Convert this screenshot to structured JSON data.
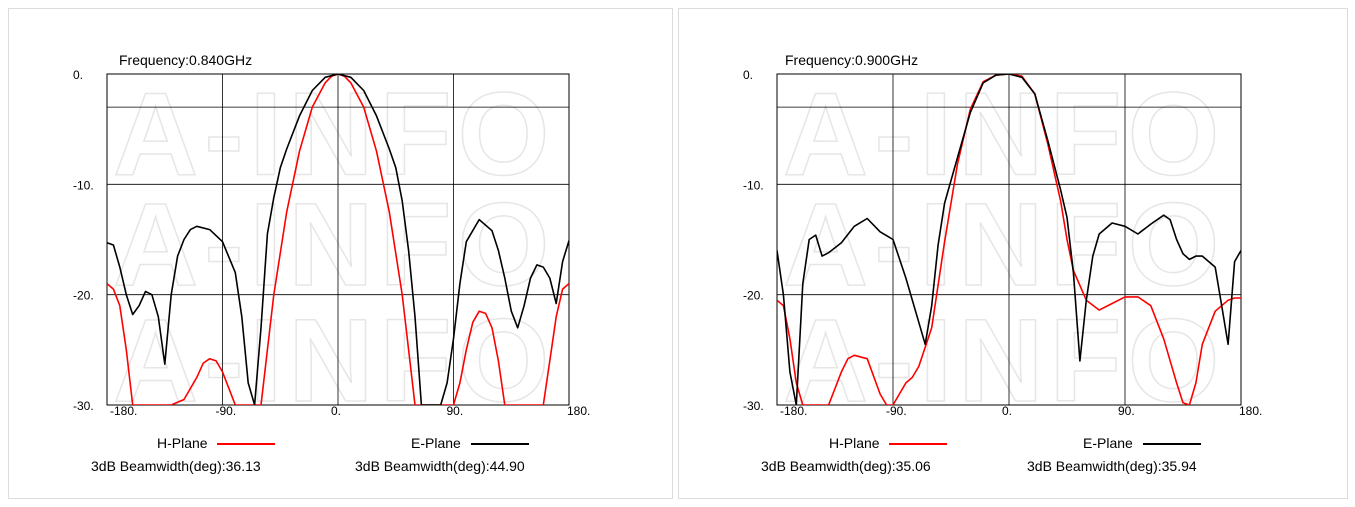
{
  "watermark": "A-INFO",
  "chart_data": [
    {
      "type": "line",
      "title": "Frequency:0.840GHz",
      "xlim": [
        -180,
        180
      ],
      "ylim": [
        -30,
        0
      ],
      "x_ticks": [
        "-180.",
        "-90.",
        "0.",
        "90.",
        "180."
      ],
      "y_ticks": [
        "0.",
        "-10.",
        "-20.",
        "-30."
      ],
      "reference_line_db": -3,
      "grid": true,
      "series": [
        {
          "name": "H-Plane",
          "color": "#ff0000",
          "beamwidth_label": "3dB Beamwidth(deg):36.13",
          "x": [
            -180,
            -175,
            -170,
            -165,
            -160,
            -150,
            -140,
            -130,
            -120,
            -110,
            -105,
            -100,
            -95,
            -90,
            -85,
            -80,
            -75,
            -70,
            -65,
            -60,
            -50,
            -40,
            -30,
            -20,
            -10,
            -5,
            0,
            5,
            10,
            20,
            30,
            40,
            50,
            55,
            60,
            65,
            70,
            75,
            80,
            85,
            90,
            95,
            100,
            105,
            110,
            115,
            120,
            125,
            130,
            140,
            150,
            160,
            165,
            170,
            175,
            180
          ],
          "y": [
            -19,
            -19.5,
            -21,
            -25,
            -30,
            -30,
            -30,
            -30,
            -29.5,
            -27.5,
            -26.2,
            -25.8,
            -26,
            -27,
            -28.5,
            -30,
            -30,
            -30,
            -30,
            -30,
            -20,
            -12.5,
            -7,
            -3,
            -0.8,
            -0.2,
            0,
            -0.2,
            -0.8,
            -3,
            -7,
            -12.5,
            -20,
            -25,
            -30,
            -30,
            -30,
            -30,
            -30,
            -30,
            -30,
            -28,
            -25,
            -22.5,
            -21.5,
            -21.7,
            -23,
            -26,
            -30,
            -30,
            -30,
            -30,
            -26,
            -22,
            -19.5,
            -19
          ]
        },
        {
          "name": "E-Plane",
          "color": "#000000",
          "beamwidth_label": "3dB Beamwidth(deg):44.90",
          "x": [
            -180,
            -175,
            -170,
            -165,
            -160,
            -155,
            -150,
            -145,
            -140,
            -135,
            -130,
            -125,
            -120,
            -115,
            -110,
            -100,
            -90,
            -80,
            -75,
            -70,
            -65,
            -60,
            -55,
            -50,
            -45,
            -40,
            -30,
            -20,
            -10,
            0,
            10,
            20,
            30,
            40,
            45,
            50,
            55,
            60,
            65,
            70,
            75,
            80,
            85,
            90,
            95,
            100,
            110,
            120,
            125,
            130,
            135,
            140,
            145,
            150,
            155,
            160,
            165,
            170,
            175,
            180
          ],
          "y": [
            -15.3,
            -15.5,
            -17.5,
            -20,
            -21.8,
            -21,
            -19.7,
            -20,
            -22,
            -26.3,
            -20,
            -16.5,
            -15,
            -14.1,
            -13.8,
            -14.1,
            -15.2,
            -18,
            -22,
            -28,
            -30,
            -23,
            -14.5,
            -11.2,
            -8.5,
            -6.8,
            -3.8,
            -1.5,
            -0.3,
            0,
            -0.3,
            -1.5,
            -3.8,
            -6.8,
            -8.5,
            -11.5,
            -16,
            -22,
            -30,
            -30,
            -30,
            -30,
            -28,
            -24,
            -19,
            -15.2,
            -13.2,
            -14.2,
            -16,
            -18.5,
            -21.5,
            -23,
            -21,
            -18.5,
            -17.3,
            -17.5,
            -18.5,
            -20.8,
            -17,
            -15.1
          ]
        }
      ]
    },
    {
      "type": "line",
      "title": "Frequency:0.900GHz",
      "xlim": [
        -180,
        180
      ],
      "ylim": [
        -30,
        0
      ],
      "x_ticks": [
        "-180.",
        "-90.",
        "0.",
        "90.",
        "180."
      ],
      "y_ticks": [
        "0.",
        "-10.",
        "-20.",
        "-30."
      ],
      "reference_line_db": -3,
      "grid": true,
      "series": [
        {
          "name": "H-Plane",
          "color": "#ff0000",
          "beamwidth_label": "3dB Beamwidth(deg):35.06",
          "x": [
            -180,
            -175,
            -170,
            -165,
            -160,
            -155,
            -150,
            -140,
            -130,
            -125,
            -120,
            -110,
            -100,
            -95,
            -90,
            -85,
            -80,
            -75,
            -70,
            -60,
            -50,
            -40,
            -30,
            -20,
            -10,
            0,
            10,
            20,
            30,
            40,
            45,
            50,
            60,
            70,
            80,
            90,
            100,
            110,
            120,
            130,
            135,
            140,
            145,
            150,
            160,
            170,
            175,
            180
          ],
          "y": [
            -20.5,
            -21,
            -24,
            -28,
            -30,
            -30,
            -30,
            -30,
            -27,
            -25.8,
            -25.5,
            -25.8,
            -29,
            -30,
            -30,
            -29,
            -28,
            -27.5,
            -26.5,
            -23,
            -15.2,
            -8.2,
            -3.2,
            -0.7,
            -0.1,
            0,
            -0.2,
            -1.8,
            -6.3,
            -11.5,
            -15,
            -17.8,
            -20.5,
            -21.4,
            -20.8,
            -20.2,
            -20.2,
            -21,
            -24,
            -28,
            -29.8,
            -30,
            -28,
            -24.5,
            -21.5,
            -20.5,
            -20.3,
            -20.3
          ]
        },
        {
          "name": "E-Plane",
          "color": "#000000",
          "beamwidth_label": "3dB Beamwidth(deg):35.94",
          "x": [
            -180,
            -175,
            -170,
            -165,
            -160,
            -155,
            -150,
            -145,
            -140,
            -130,
            -120,
            -110,
            -100,
            -90,
            -80,
            -70,
            -65,
            -60,
            -55,
            -50,
            -40,
            -30,
            -20,
            -10,
            0,
            10,
            20,
            30,
            40,
            45,
            50,
            55,
            60,
            65,
            70,
            80,
            90,
            100,
            110,
            120,
            125,
            130,
            135,
            140,
            145,
            150,
            160,
            165,
            170,
            175,
            180
          ],
          "y": [
            -16,
            -20,
            -27,
            -30,
            -19,
            -15,
            -14.6,
            -16.5,
            -16.2,
            -15.3,
            -13.8,
            -13.1,
            -14.3,
            -15,
            -18.5,
            -22.5,
            -24.5,
            -21,
            -15.5,
            -11.7,
            -7.6,
            -3.5,
            -0.8,
            -0.1,
            0,
            -0.3,
            -1.8,
            -6,
            -10.5,
            -13,
            -18,
            -26,
            -20.5,
            -16.5,
            -14.5,
            -13.5,
            -13.8,
            -14.5,
            -13.6,
            -12.8,
            -13.2,
            -15,
            -16.3,
            -16.8,
            -16.5,
            -16.5,
            -17.5,
            -21,
            -24.5,
            -17,
            -16
          ]
        }
      ]
    }
  ]
}
